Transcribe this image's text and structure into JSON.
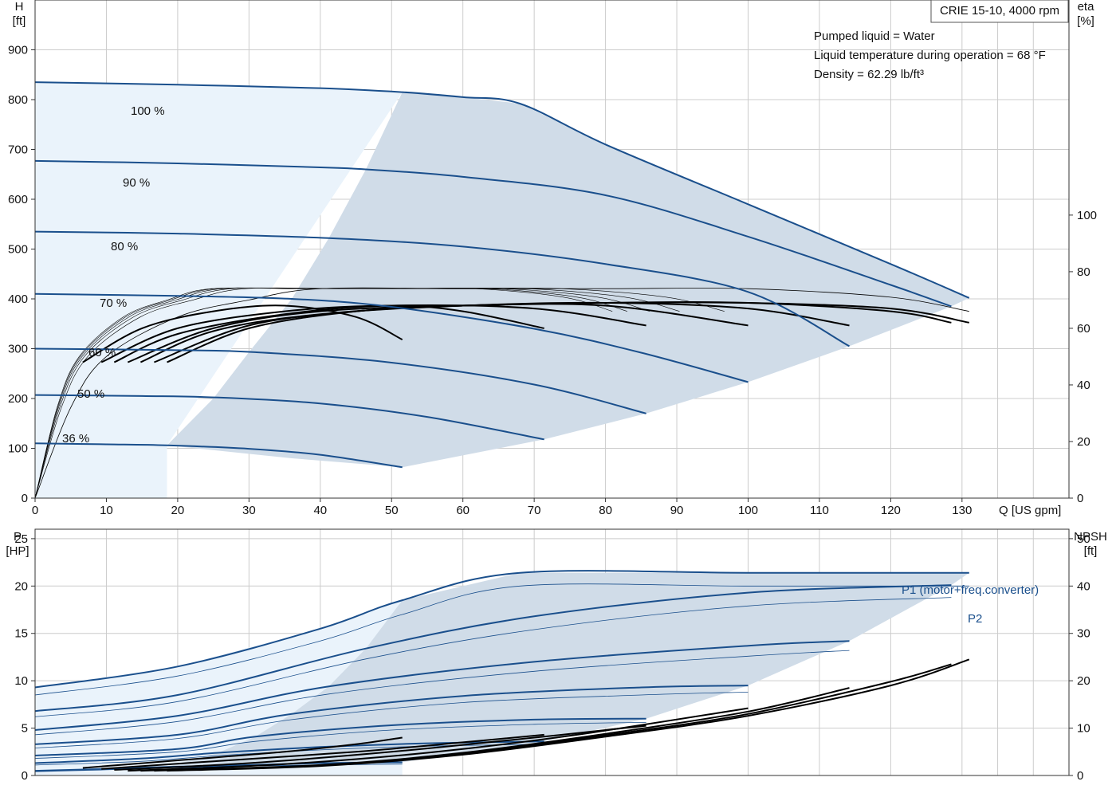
{
  "chart_data": [
    {
      "type": "line",
      "title": "CRIE 15-10, 4000 rpm",
      "info_lines": [
        "Pumped liquid = Water",
        "Liquid temperature during operation = 68 °F",
        "Density = 62.29 lb/ft³"
      ],
      "xlabel": "Q [US gpm]",
      "ylabel": [
        "H",
        "[ft]"
      ],
      "y2label": [
        "eta",
        "[%]"
      ],
      "xlim": [
        0,
        145
      ],
      "ylim": [
        0,
        1000
      ],
      "y2lim": [
        0,
        176
      ],
      "x_ticks": [
        "0",
        "10",
        "20",
        "30",
        "40",
        "50",
        "60",
        "70",
        "80",
        "90",
        "100",
        "110",
        "120",
        "130"
      ],
      "y_ticks": [
        "0",
        "100",
        "200",
        "300",
        "400",
        "500",
        "600",
        "700",
        "800",
        "900"
      ],
      "y2_ticks": [
        "0",
        "20",
        "40",
        "60",
        "80",
        "100"
      ],
      "grid": true,
      "colors": {
        "curve": "#1a4f8c",
        "area": "#d0dce8",
        "area_light": "#eaf3fb",
        "grid": "#cccccc",
        "eta": "#000000"
      },
      "speed_labels": [
        "100 %",
        "90 %",
        "80 %",
        "70 %",
        "60 %",
        "50 %",
        "36 %"
      ],
      "head_curves": [
        {
          "speed": "100 %",
          "x": [
            0,
            20,
            40,
            51.5,
            60,
            68,
            80,
            100,
            120,
            131
          ],
          "y": [
            835,
            830,
            823,
            815,
            805,
            792,
            710,
            590,
            470,
            402
          ]
        },
        {
          "speed": "90 %",
          "x": [
            0,
            20,
            40,
            46.4,
            60,
            80,
            100,
            120,
            128.5
          ],
          "y": [
            677,
            672,
            664,
            660,
            645,
            608,
            525,
            428,
            385
          ]
        },
        {
          "speed": "80 %",
          "x": [
            0,
            20,
            41.2,
            60,
            80,
            100,
            114.2
          ],
          "y": [
            535,
            531,
            522,
            505,
            470,
            414,
            305
          ]
        },
        {
          "speed": "70 %",
          "x": [
            0,
            20,
            36,
            50,
            70,
            85,
            100
          ],
          "y": [
            410,
            406,
            400,
            384,
            340,
            292,
            233
          ]
        },
        {
          "speed": "60 %",
          "x": [
            0,
            20,
            30.9,
            50,
            70,
            85.7
          ],
          "y": [
            300,
            297,
            293,
            272,
            228,
            170
          ]
        },
        {
          "speed": "50 %",
          "x": [
            0,
            15,
            25.7,
            40,
            55,
            71.4
          ],
          "y": [
            207,
            205,
            202,
            190,
            163,
            118
          ]
        },
        {
          "speed": "36 %",
          "x": [
            0,
            10,
            18.5,
            30,
            40,
            51.5
          ],
          "y": [
            110,
            108,
            106,
            99,
            87,
            62
          ]
        }
      ],
      "eta_curves": [
        {
          "speed": "100 %",
          "x": [
            18.5,
            30,
            45,
            60,
            80,
            100,
            120,
            131
          ],
          "y": [
            48,
            60,
            66,
            68,
            69,
            69,
            67,
            62
          ]
        },
        {
          "speed": "90 %",
          "x": [
            16.7,
            30,
            45,
            60,
            80,
            100,
            120,
            128.5
          ],
          "y": [
            48,
            61,
            66,
            68,
            69,
            69,
            66,
            62
          ]
        },
        {
          "speed": "80 %",
          "x": [
            14.8,
            25,
            40,
            60,
            80,
            100,
            114.2
          ],
          "y": [
            48,
            59,
            65,
            68,
            69,
            67,
            61
          ]
        },
        {
          "speed": "70 %",
          "x": [
            13,
            25,
            40,
            60,
            80,
            100
          ],
          "y": [
            48,
            60,
            66,
            68,
            68,
            61
          ]
        },
        {
          "speed": "60 %",
          "x": [
            11.1,
            20,
            35,
            50,
            70,
            85.7
          ],
          "y": [
            48,
            58,
            65,
            68,
            67,
            61
          ]
        },
        {
          "speed": "50 %",
          "x": [
            9.3,
            20,
            35,
            50,
            60,
            71.4
          ],
          "y": [
            48,
            60,
            66,
            68,
            66,
            60
          ]
        },
        {
          "speed": "36 %",
          "x": [
            6.7,
            15,
            25,
            35,
            45,
            51.5
          ],
          "y": [
            48,
            60,
            66,
            68,
            64,
            56
          ]
        }
      ],
      "eta_envelope": {
        "x": [
          0,
          5,
          10,
          20,
          30,
          40,
          60,
          80,
          100,
          120,
          131
        ],
        "y": [
          0,
          32,
          50,
          64,
          70,
          74,
          74,
          74,
          74,
          71,
          66
        ]
      },
      "operating_area": {
        "x": [
          51.5,
          60,
          68,
          80,
          100,
          120,
          131,
          128.5,
          114.2,
          100,
          85.7,
          71.4,
          51.5,
          36,
          18.5,
          25,
          30,
          36,
          41.2,
          46.4
        ],
        "y": [
          815,
          805,
          792,
          710,
          590,
          470,
          402,
          385,
          305,
          233,
          170,
          118,
          62,
          80,
          106,
          200,
          293,
          400,
          522,
          660
        ]
      }
    },
    {
      "type": "line",
      "xlabel": "Q [US gpm]",
      "ylabel": [
        "P",
        "[HP]"
      ],
      "y2label": [
        "NPSH",
        "[ft]"
      ],
      "xlim": [
        0,
        145
      ],
      "ylim": [
        0,
        26
      ],
      "y2lim": [
        0,
        52
      ],
      "y_ticks": [
        "0",
        "5",
        "10",
        "15",
        "20",
        "25"
      ],
      "y2_ticks": [
        "0",
        "10",
        "20",
        "30",
        "40",
        "50"
      ],
      "grid": true,
      "series_labels": {
        "p1": "P1 (motor+freq.converter)",
        "p2": "P2"
      },
      "p1_curves": [
        {
          "speed": "100 %",
          "x": [
            0,
            20,
            40,
            51.5,
            68,
            100,
            131
          ],
          "y": [
            9.3,
            11.5,
            15.5,
            18.5,
            21.4,
            21.4,
            21.4
          ]
        },
        {
          "speed": "90 %",
          "x": [
            0,
            20,
            46.4,
            70,
            100,
            128.5
          ],
          "y": [
            6.8,
            8.5,
            13.4,
            16.8,
            19.3,
            20.1
          ]
        },
        {
          "speed": "80 %",
          "x": [
            0,
            20,
            41.2,
            70,
            100,
            114.2
          ],
          "y": [
            4.8,
            6.3,
            9.4,
            12.0,
            13.7,
            14.2
          ]
        },
        {
          "speed": "70 %",
          "x": [
            0,
            20,
            36,
            60,
            85,
            100
          ],
          "y": [
            3.3,
            4.3,
            6.5,
            8.4,
            9.3,
            9.5
          ]
        },
        {
          "speed": "60 %",
          "x": [
            0,
            20,
            30.9,
            50,
            70,
            85.7
          ],
          "y": [
            2.1,
            2.8,
            4.1,
            5.3,
            5.9,
            6.0
          ]
        },
        {
          "speed": "50 %",
          "x": [
            0,
            15,
            25.7,
            40,
            55,
            71.4
          ],
          "y": [
            1.3,
            1.8,
            2.4,
            3.0,
            3.4,
            3.6
          ]
        },
        {
          "speed": "36 %",
          "x": [
            0,
            10,
            18.5,
            30,
            40,
            51.5
          ],
          "y": [
            0.5,
            0.7,
            0.9,
            1.1,
            1.3,
            1.4
          ]
        }
      ],
      "p2_curves": [
        {
          "speed": "100 %",
          "x": [
            0,
            20,
            40,
            51.5,
            68,
            100,
            131
          ],
          "y": [
            8.5,
            10.5,
            14.2,
            17.0,
            20.0,
            20.0,
            20.0
          ]
        },
        {
          "speed": "90 %",
          "x": [
            0,
            20,
            46.4,
            70,
            100,
            128.5
          ],
          "y": [
            6.2,
            7.8,
            12.3,
            15.4,
            17.9,
            18.8
          ]
        },
        {
          "speed": "80 %",
          "x": [
            0,
            20,
            41.2,
            70,
            100,
            114.2
          ],
          "y": [
            4.3,
            5.7,
            8.6,
            11.0,
            12.6,
            13.2
          ]
        },
        {
          "speed": "70 %",
          "x": [
            0,
            20,
            36,
            60,
            85,
            100
          ],
          "y": [
            2.9,
            3.9,
            5.9,
            7.7,
            8.5,
            8.8
          ]
        },
        {
          "speed": "60 %",
          "x": [
            0,
            20,
            30.9,
            50,
            70,
            85.7
          ],
          "y": [
            1.8,
            2.5,
            3.6,
            4.8,
            5.4,
            5.6
          ]
        },
        {
          "speed": "50 %",
          "x": [
            0,
            15,
            25.7,
            40,
            55,
            71.4
          ],
          "y": [
            1.1,
            1.5,
            2.1,
            2.7,
            3.1,
            3.3
          ]
        },
        {
          "speed": "36 %",
          "x": [
            0,
            10,
            18.5,
            30,
            40,
            51.5
          ],
          "y": [
            0.4,
            0.6,
            0.8,
            1.0,
            1.1,
            1.2
          ]
        }
      ],
      "npsh_curves": [
        {
          "speed": "100 %",
          "x": [
            18.5,
            40,
            60,
            80,
            100,
            120,
            131
          ],
          "y": [
            1.0,
            2.0,
            4.4,
            8.2,
            12.6,
            19.0,
            24.5
          ]
        },
        {
          "speed": "90 %",
          "x": [
            16.7,
            40,
            60,
            80,
            100,
            120,
            128.5
          ],
          "y": [
            1.0,
            2.1,
            4.6,
            8.5,
            13.0,
            19.8,
            23.5
          ]
        },
        {
          "speed": "80 %",
          "x": [
            14.8,
            40,
            60,
            80,
            100,
            114.2
          ],
          "y": [
            1.0,
            2.2,
            4.8,
            8.8,
            13.5,
            18.5
          ]
        },
        {
          "speed": "70 %",
          "x": [
            13,
            35,
            55,
            75,
            100
          ],
          "y": [
            1.0,
            2.4,
            4.8,
            8.4,
            14.2
          ]
        },
        {
          "speed": "60 %",
          "x": [
            11.1,
            30,
            50,
            70,
            85.7
          ],
          "y": [
            1.2,
            2.6,
            5.0,
            8.0,
            10.5
          ]
        },
        {
          "speed": "50 %",
          "x": [
            9.3,
            25,
            45,
            60,
            71.4
          ],
          "y": [
            1.4,
            3.0,
            5.0,
            7.0,
            8.6
          ]
        },
        {
          "speed": "36 %",
          "x": [
            6.7,
            20,
            35,
            45,
            51.5
          ],
          "y": [
            1.6,
            3.2,
            5.0,
            6.6,
            8.0
          ]
        }
      ],
      "operating_area": {
        "x": [
          51.5,
          68,
          100,
          131,
          128.5,
          114.2,
          100,
          85.7,
          71.4,
          51.5,
          36,
          18.5,
          25.7,
          30.9,
          36,
          41.2,
          46.4
        ],
        "y": [
          18.5,
          21.4,
          21.4,
          21.4,
          20.1,
          14.2,
          9.5,
          6.0,
          3.6,
          1.4,
          1.0,
          0.9,
          2.4,
          4.1,
          6.5,
          9.4,
          13.4
        ]
      }
    }
  ]
}
